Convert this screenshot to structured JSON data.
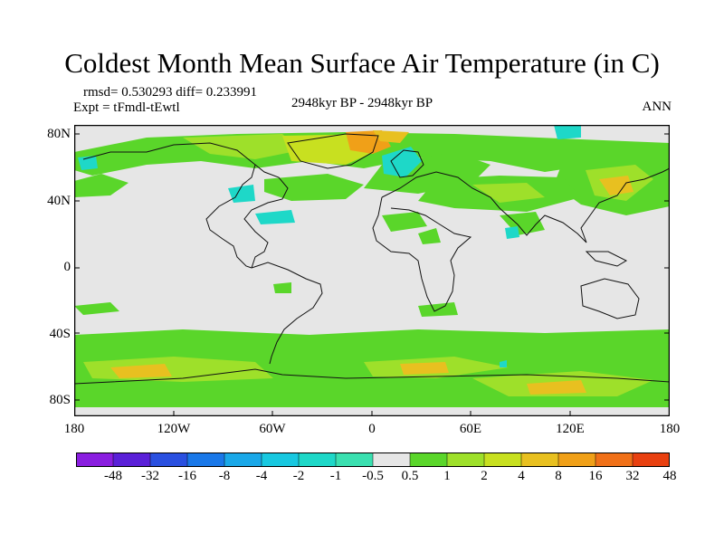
{
  "title": "Coldest Month Mean Surface Air Temperature (in C)",
  "stats": "rmsd= 0.530293 diff= 0.233991",
  "expt": "Expt = tFmdl-tEwtl",
  "period": "2948kyr BP - 2948kyr BP",
  "season": "ANN",
  "y_axis": {
    "ticks": [
      "80N",
      "40N",
      "0",
      "40S",
      "80S"
    ]
  },
  "x_axis": {
    "ticks": [
      "180",
      "120W",
      "60W",
      "0",
      "60E",
      "120E",
      "180"
    ]
  },
  "colorbar": {
    "labels": [
      "-48",
      "-32",
      "-16",
      "-8",
      "-4",
      "-2",
      "-1",
      "-0.5",
      "0.5",
      "1",
      "2",
      "4",
      "8",
      "16",
      "32",
      "48"
    ],
    "colors": [
      "#8a1ee0",
      "#5a20d8",
      "#2a50e0",
      "#1a78e8",
      "#1aa8e8",
      "#18c8e0",
      "#1ed8c8",
      "#3ae0b0",
      "#e6e6e6",
      "#5ad62a",
      "#9ee02a",
      "#c8e020",
      "#e8c020",
      "#f0a018",
      "#f07018",
      "#e84010"
    ]
  },
  "colors": {
    "background_field": "#e6e6e6",
    "coast": "#111111",
    "positive_small": "#5ad62a",
    "positive_mid": "#9ee02a",
    "warm": "#e8c020",
    "hot": "#f0a018",
    "cool": "#1ed8c8"
  }
}
